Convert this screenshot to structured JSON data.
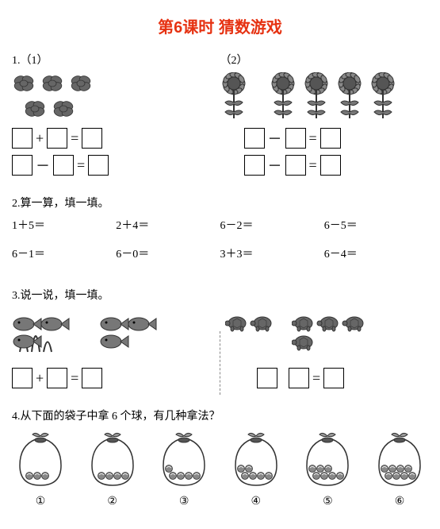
{
  "title": "第6课时  猜数游戏",
  "q1": {
    "num": "1.",
    "part1": "（1）",
    "part2": "（2）",
    "plus": "+",
    "minus": "－",
    "eq": "="
  },
  "q2": {
    "prompt": "2.算一算，填一填。",
    "items": [
      "1＋5＝",
      "2＋4＝",
      "6－2＝",
      "6－5＝",
      "6－1＝",
      "6－0＝",
      "3＋3＝",
      "6－4＝"
    ]
  },
  "q3": {
    "prompt": "3.说一说，填一填。",
    "plus": "+",
    "eq": "="
  },
  "q4": {
    "prompt": "4.从下面的袋子中拿 6 个球，有几种拿法？",
    "labels": [
      "①",
      "②",
      "③",
      "④",
      "⑤",
      "⑥"
    ],
    "counts": [
      3,
      4,
      5,
      6,
      7,
      8
    ]
  },
  "colors": {
    "title": "#e63212",
    "line": "#333",
    "fill": "#888"
  }
}
